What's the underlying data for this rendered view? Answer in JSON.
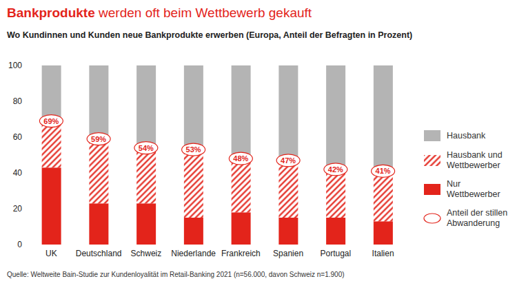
{
  "chart_data": {
    "type": "bar",
    "title": "Bankprodukte werden oft beim Wettbewerb gekauft",
    "subtitle": "Wo Kundinnen und Kunden neue Bankprodukte erwerben (Europa, Anteil der Befragten in Prozent)",
    "source": "Quelle: Weltweite Bain-Studie zur Kundenloyalität im Retail-Banking 2021 (n=56.000, davon Schweiz n=1.900)",
    "categories": [
      "UK",
      "Deutschland",
      "Schweiz",
      "Niederlande",
      "Frankreich",
      "Spanien",
      "Portugal",
      "Italien"
    ],
    "series": [
      {
        "name": "Hausbank",
        "color": "#b4b4b4",
        "values": [
          31,
          41,
          46,
          47,
          52,
          53,
          58,
          59
        ]
      },
      {
        "name": "Hausbank und Wettbewerber",
        "color": "#e3241b",
        "line_style": "hatched",
        "values": [
          26,
          36,
          31,
          38,
          30,
          32,
          27,
          28
        ]
      },
      {
        "name": "Nur Wettbewerber",
        "color": "#e3241b",
        "values": [
          43,
          23,
          23,
          15,
          18,
          15,
          15,
          13
        ]
      },
      {
        "name": "Anteil der stillen Abwanderung",
        "type": "annotation",
        "marker": "ellipse",
        "color": "#e3241b",
        "values": [
          69,
          59,
          54,
          53,
          48,
          47,
          42,
          41
        ],
        "value_labels": [
          "69%",
          "59%",
          "54%",
          "53%",
          "48%",
          "47%",
          "42%",
          "41%"
        ]
      }
    ],
    "stacked": true,
    "ylim": [
      0,
      100
    ],
    "yticks": [
      0,
      20,
      40,
      60,
      80,
      100
    ],
    "grid": false,
    "legend": "right"
  }
}
